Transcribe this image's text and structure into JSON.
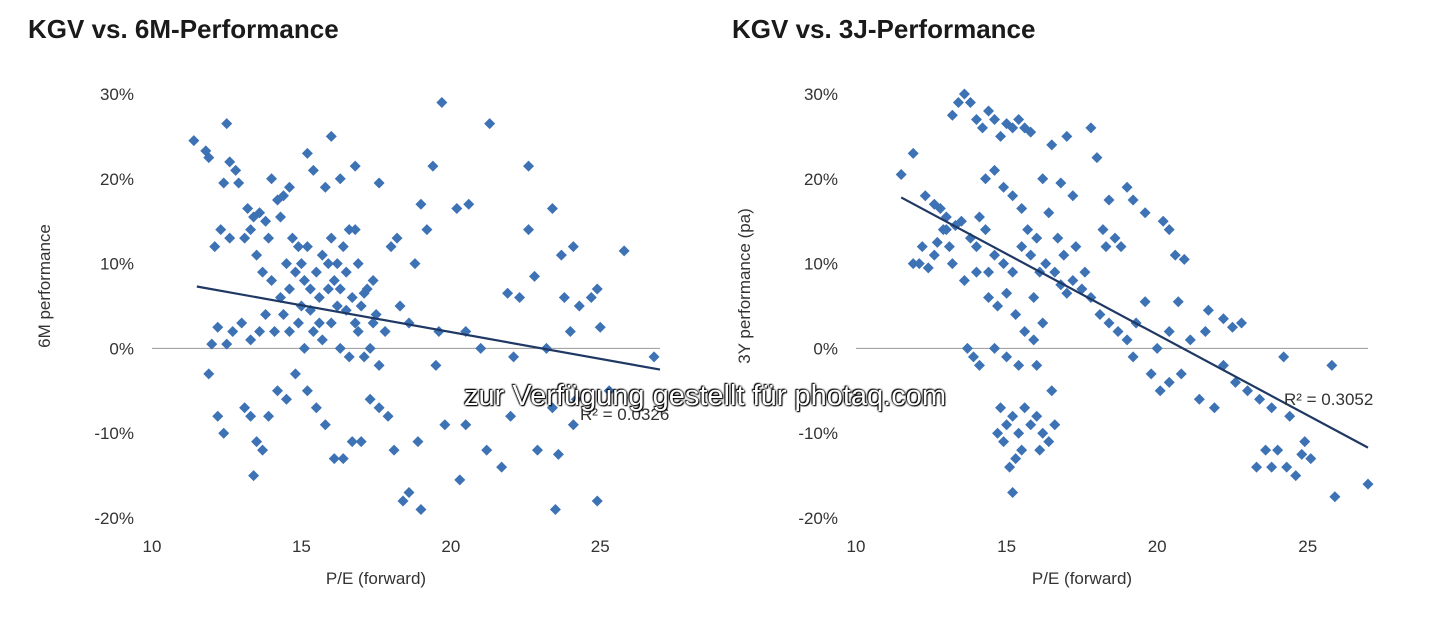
{
  "chart_data": [
    {
      "type": "scatter",
      "title": "KGV vs. 6M-Performance",
      "xlabel": "P/E (forward)",
      "ylabel": "6M performance",
      "xlim": [
        10,
        27
      ],
      "ylim": [
        -0.2,
        0.3
      ],
      "x_ticks": [
        "10",
        "15",
        "20",
        "25"
      ],
      "y_ticks": [
        "30%",
        "20%",
        "10%",
        "0%",
        "-10%",
        "-20%"
      ],
      "trendline": {
        "x": [
          11.5,
          27.0
        ],
        "y": [
          0.073,
          -0.025
        ]
      },
      "r2_label": "R² = 0.0326",
      "color": "#3d72b5",
      "points": [
        [
          11.4,
          0.245
        ],
        [
          11.8,
          0.233
        ],
        [
          11.9,
          0.225
        ],
        [
          12.5,
          0.265
        ],
        [
          12.6,
          0.22
        ],
        [
          12.8,
          0.21
        ],
        [
          12.4,
          0.195
        ],
        [
          12.9,
          0.195
        ],
        [
          12.3,
          0.14
        ],
        [
          12.1,
          0.12
        ],
        [
          12.6,
          0.13
        ],
        [
          13.2,
          0.165
        ],
        [
          13.4,
          0.155
        ],
        [
          13.6,
          0.16
        ],
        [
          13.8,
          0.15
        ],
        [
          14.0,
          0.2
        ],
        [
          14.2,
          0.175
        ],
        [
          14.4,
          0.18
        ],
        [
          14.6,
          0.19
        ],
        [
          14.3,
          0.155
        ],
        [
          14.7,
          0.13
        ],
        [
          14.9,
          0.12
        ],
        [
          15.2,
          0.23
        ],
        [
          15.4,
          0.21
        ],
        [
          15.8,
          0.19
        ],
        [
          16.0,
          0.25
        ],
        [
          16.3,
          0.2
        ],
        [
          16.8,
          0.215
        ],
        [
          17.6,
          0.195
        ],
        [
          13.1,
          0.13
        ],
        [
          13.3,
          0.14
        ],
        [
          13.5,
          0.11
        ],
        [
          13.9,
          0.13
        ],
        [
          14.5,
          0.1
        ],
        [
          14.8,
          0.09
        ],
        [
          15.0,
          0.1
        ],
        [
          15.1,
          0.08
        ],
        [
          15.3,
          0.07
        ],
        [
          15.5,
          0.09
        ],
        [
          15.6,
          0.06
        ],
        [
          15.7,
          0.11
        ],
        [
          15.9,
          0.07
        ],
        [
          16.1,
          0.08
        ],
        [
          16.2,
          0.1
        ],
        [
          16.4,
          0.12
        ],
        [
          16.5,
          0.09
        ],
        [
          16.6,
          0.14
        ],
        [
          16.7,
          0.06
        ],
        [
          16.9,
          0.1
        ],
        [
          17.0,
          0.05
        ],
        [
          17.2,
          0.07
        ],
        [
          17.4,
          0.03
        ],
        [
          17.5,
          0.04
        ],
        [
          17.8,
          0.02
        ],
        [
          18.0,
          0.12
        ],
        [
          18.2,
          0.13
        ],
        [
          18.8,
          0.1
        ],
        [
          19.0,
          0.17
        ],
        [
          19.4,
          0.215
        ],
        [
          19.7,
          0.29
        ],
        [
          20.2,
          0.165
        ],
        [
          20.6,
          0.17
        ],
        [
          21.3,
          0.265
        ],
        [
          22.6,
          0.215
        ],
        [
          22.6,
          0.14
        ],
        [
          23.4,
          0.165
        ],
        [
          21.9,
          0.065
        ],
        [
          22.3,
          0.06
        ],
        [
          22.8,
          0.085
        ],
        [
          23.7,
          0.11
        ],
        [
          24.1,
          0.12
        ],
        [
          23.8,
          0.06
        ],
        [
          24.3,
          0.05
        ],
        [
          24.7,
          0.06
        ],
        [
          24.9,
          0.07
        ],
        [
          25.0,
          0.025
        ],
        [
          25.8,
          0.115
        ],
        [
          12.2,
          0.025
        ],
        [
          12.5,
          0.005
        ],
        [
          12.0,
          0.005
        ],
        [
          12.7,
          0.02
        ],
        [
          13.0,
          0.03
        ],
        [
          13.3,
          0.01
        ],
        [
          13.6,
          0.02
        ],
        [
          13.8,
          0.04
        ],
        [
          14.1,
          0.02
        ],
        [
          14.4,
          0.04
        ],
        [
          14.6,
          0.02
        ],
        [
          14.9,
          0.03
        ],
        [
          15.1,
          0.0
        ],
        [
          15.4,
          0.02
        ],
        [
          15.7,
          0.01
        ],
        [
          16.0,
          0.03
        ],
        [
          16.3,
          0.0
        ],
        [
          16.6,
          -0.01
        ],
        [
          16.9,
          0.02
        ],
        [
          17.1,
          -0.01
        ],
        [
          17.3,
          0.0
        ],
        [
          17.6,
          -0.02
        ],
        [
          11.9,
          -0.03
        ],
        [
          12.2,
          -0.08
        ],
        [
          12.4,
          -0.1
        ],
        [
          13.1,
          -0.07
        ],
        [
          13.3,
          -0.08
        ],
        [
          13.5,
          -0.11
        ],
        [
          13.7,
          -0.12
        ],
        [
          13.9,
          -0.08
        ],
        [
          13.4,
          -0.15
        ],
        [
          14.2,
          -0.05
        ],
        [
          14.5,
          -0.06
        ],
        [
          14.8,
          -0.03
        ],
        [
          15.2,
          -0.05
        ],
        [
          15.5,
          -0.07
        ],
        [
          15.8,
          -0.09
        ],
        [
          16.1,
          -0.13
        ],
        [
          16.4,
          -0.13
        ],
        [
          16.7,
          -0.11
        ],
        [
          17.0,
          -0.11
        ],
        [
          17.3,
          -0.06
        ],
        [
          17.6,
          -0.07
        ],
        [
          17.9,
          -0.08
        ],
        [
          18.1,
          -0.12
        ],
        [
          18.4,
          -0.18
        ],
        [
          18.6,
          -0.17
        ],
        [
          18.9,
          -0.11
        ],
        [
          19.0,
          -0.19
        ],
        [
          19.5,
          -0.02
        ],
        [
          19.8,
          -0.09
        ],
        [
          20.3,
          -0.155
        ],
        [
          20.5,
          -0.09
        ],
        [
          21.2,
          -0.12
        ],
        [
          21.7,
          -0.14
        ],
        [
          22.0,
          -0.08
        ],
        [
          22.9,
          -0.12
        ],
        [
          23.4,
          -0.07
        ],
        [
          23.5,
          -0.19
        ],
        [
          23.6,
          -0.125
        ],
        [
          24.2,
          -0.06
        ],
        [
          24.1,
          -0.09
        ],
        [
          24.9,
          -0.18
        ],
        [
          25.3,
          -0.05
        ],
        [
          26.8,
          -0.01
        ],
        [
          19.2,
          0.14
        ],
        [
          18.3,
          0.05
        ],
        [
          18.6,
          0.03
        ],
        [
          19.6,
          0.02
        ],
        [
          20.5,
          0.02
        ],
        [
          21.0,
          0.0
        ],
        [
          22.1,
          -0.01
        ],
        [
          23.2,
          0.0
        ],
        [
          24.0,
          0.02
        ],
        [
          14.0,
          0.08
        ],
        [
          13.7,
          0.09
        ],
        [
          14.3,
          0.06
        ],
        [
          15.0,
          0.05
        ],
        [
          15.3,
          0.045
        ],
        [
          15.6,
          0.03
        ],
        [
          16.2,
          0.05
        ],
        [
          16.5,
          0.045
        ],
        [
          16.8,
          0.03
        ],
        [
          17.1,
          0.065
        ],
        [
          17.4,
          0.08
        ],
        [
          14.6,
          0.07
        ],
        [
          15.9,
          0.1
        ],
        [
          16.3,
          0.07
        ],
        [
          15.2,
          0.12
        ],
        [
          16.0,
          0.13
        ],
        [
          16.8,
          0.14
        ]
      ]
    },
    {
      "type": "scatter",
      "title": "KGV vs. 3J-Performance",
      "xlabel": "P/E (forward)",
      "ylabel": "3Y performance (pa)",
      "xlim": [
        10,
        27
      ],
      "ylim": [
        -0.2,
        0.3
      ],
      "x_ticks": [
        "10",
        "15",
        "20",
        "25"
      ],
      "y_ticks": [
        "30%",
        "20%",
        "10%",
        "0%",
        "-10%",
        "-20%"
      ],
      "trendline": {
        "x": [
          11.5,
          27.0
        ],
        "y": [
          0.178,
          -0.117
        ]
      },
      "r2_label": "R² = 0.3052",
      "color": "#3d72b5",
      "points": [
        [
          11.5,
          0.205
        ],
        [
          11.9,
          0.23
        ],
        [
          12.3,
          0.18
        ],
        [
          12.6,
          0.17
        ],
        [
          12.8,
          0.165
        ],
        [
          13.0,
          0.14
        ],
        [
          12.2,
          0.12
        ],
        [
          11.9,
          0.1
        ],
        [
          12.1,
          0.1
        ],
        [
          12.4,
          0.095
        ],
        [
          12.6,
          0.11
        ],
        [
          13.1,
          0.12
        ],
        [
          13.2,
          0.275
        ],
        [
          13.4,
          0.29
        ],
        [
          13.6,
          0.3
        ],
        [
          13.8,
          0.29
        ],
        [
          14.0,
          0.27
        ],
        [
          14.2,
          0.26
        ],
        [
          14.4,
          0.28
        ],
        [
          14.6,
          0.27
        ],
        [
          14.8,
          0.25
        ],
        [
          15.0,
          0.265
        ],
        [
          15.2,
          0.26
        ],
        [
          15.4,
          0.27
        ],
        [
          15.6,
          0.26
        ],
        [
          15.8,
          0.255
        ],
        [
          16.5,
          0.24
        ],
        [
          17.0,
          0.25
        ],
        [
          17.8,
          0.26
        ],
        [
          14.3,
          0.2
        ],
        [
          14.6,
          0.21
        ],
        [
          14.9,
          0.19
        ],
        [
          15.2,
          0.18
        ],
        [
          15.5,
          0.165
        ],
        [
          16.2,
          0.2
        ],
        [
          16.8,
          0.195
        ],
        [
          17.2,
          0.18
        ],
        [
          18.0,
          0.225
        ],
        [
          18.4,
          0.175
        ],
        [
          18.6,
          0.13
        ],
        [
          18.8,
          0.12
        ],
        [
          19.0,
          0.19
        ],
        [
          19.2,
          0.175
        ],
        [
          19.6,
          0.16
        ],
        [
          20.2,
          0.15
        ],
        [
          20.4,
          0.14
        ],
        [
          20.6,
          0.11
        ],
        [
          20.9,
          0.105
        ],
        [
          21.7,
          0.045
        ],
        [
          22.2,
          0.035
        ],
        [
          22.5,
          0.025
        ],
        [
          22.8,
          0.03
        ],
        [
          13.5,
          0.15
        ],
        [
          13.8,
          0.13
        ],
        [
          14.0,
          0.12
        ],
        [
          14.3,
          0.14
        ],
        [
          14.6,
          0.11
        ],
        [
          14.9,
          0.1
        ],
        [
          15.2,
          0.09
        ],
        [
          15.5,
          0.12
        ],
        [
          15.8,
          0.11
        ],
        [
          16.0,
          0.13
        ],
        [
          16.3,
          0.1
        ],
        [
          16.6,
          0.09
        ],
        [
          16.9,
          0.11
        ],
        [
          17.2,
          0.08
        ],
        [
          17.5,
          0.07
        ],
        [
          17.8,
          0.06
        ],
        [
          18.1,
          0.04
        ],
        [
          18.4,
          0.03
        ],
        [
          18.7,
          0.02
        ],
        [
          19.0,
          0.01
        ],
        [
          19.3,
          0.03
        ],
        [
          19.6,
          0.055
        ],
        [
          20.0,
          0.0
        ],
        [
          20.4,
          0.02
        ],
        [
          20.7,
          0.055
        ],
        [
          21.1,
          0.01
        ],
        [
          21.6,
          0.02
        ],
        [
          13.2,
          0.1
        ],
        [
          13.6,
          0.08
        ],
        [
          14.0,
          0.09
        ],
        [
          14.4,
          0.06
        ],
        [
          14.7,
          0.05
        ],
        [
          15.0,
          0.065
        ],
        [
          15.3,
          0.04
        ],
        [
          15.6,
          0.02
        ],
        [
          15.9,
          0.01
        ],
        [
          16.2,
          0.03
        ],
        [
          13.7,
          0.0
        ],
        [
          13.9,
          -0.01
        ],
        [
          14.1,
          -0.02
        ],
        [
          14.6,
          0.0
        ],
        [
          15.0,
          -0.01
        ],
        [
          15.4,
          -0.02
        ],
        [
          16.0,
          -0.02
        ],
        [
          19.2,
          -0.01
        ],
        [
          19.8,
          -0.03
        ],
        [
          20.1,
          -0.05
        ],
        [
          20.4,
          -0.04
        ],
        [
          20.8,
          -0.03
        ],
        [
          21.4,
          -0.06
        ],
        [
          21.9,
          -0.07
        ],
        [
          22.2,
          -0.02
        ],
        [
          22.6,
          -0.04
        ],
        [
          23.0,
          -0.05
        ],
        [
          23.4,
          -0.06
        ],
        [
          23.8,
          -0.07
        ],
        [
          24.2,
          -0.01
        ],
        [
          24.4,
          -0.08
        ],
        [
          14.8,
          -0.07
        ],
        [
          15.0,
          -0.09
        ],
        [
          15.2,
          -0.08
        ],
        [
          15.4,
          -0.1
        ],
        [
          15.6,
          -0.07
        ],
        [
          15.8,
          -0.09
        ],
        [
          16.0,
          -0.08
        ],
        [
          16.2,
          -0.1
        ],
        [
          16.4,
          -0.11
        ],
        [
          16.6,
          -0.09
        ],
        [
          14.7,
          -0.1
        ],
        [
          14.9,
          -0.11
        ],
        [
          15.1,
          -0.14
        ],
        [
          15.3,
          -0.13
        ],
        [
          15.2,
          -0.17
        ],
        [
          15.5,
          -0.12
        ],
        [
          16.1,
          -0.12
        ],
        [
          16.5,
          -0.05
        ],
        [
          23.6,
          -0.12
        ],
        [
          23.8,
          -0.14
        ],
        [
          24.0,
          -0.12
        ],
        [
          24.3,
          -0.14
        ],
        [
          24.6,
          -0.15
        ],
        [
          24.9,
          -0.11
        ],
        [
          25.1,
          -0.13
        ],
        [
          25.9,
          -0.175
        ],
        [
          27.0,
          -0.16
        ],
        [
          25.8,
          -0.02
        ],
        [
          23.3,
          -0.14
        ],
        [
          24.8,
          -0.125
        ],
        [
          13.0,
          0.155
        ],
        [
          14.1,
          0.155
        ],
        [
          12.9,
          0.14
        ],
        [
          16.7,
          0.13
        ],
        [
          17.3,
          0.12
        ],
        [
          18.2,
          0.14
        ],
        [
          16.4,
          0.16
        ],
        [
          17.0,
          0.065
        ],
        [
          17.6,
          0.09
        ],
        [
          18.3,
          0.12
        ],
        [
          12.7,
          0.125
        ],
        [
          13.3,
          0.145
        ],
        [
          15.7,
          0.14
        ],
        [
          16.1,
          0.09
        ],
        [
          16.8,
          0.075
        ],
        [
          15.9,
          0.06
        ],
        [
          14.4,
          0.09
        ]
      ]
    }
  ],
  "watermark": "zur Verfügung gestellt für photaq.com"
}
